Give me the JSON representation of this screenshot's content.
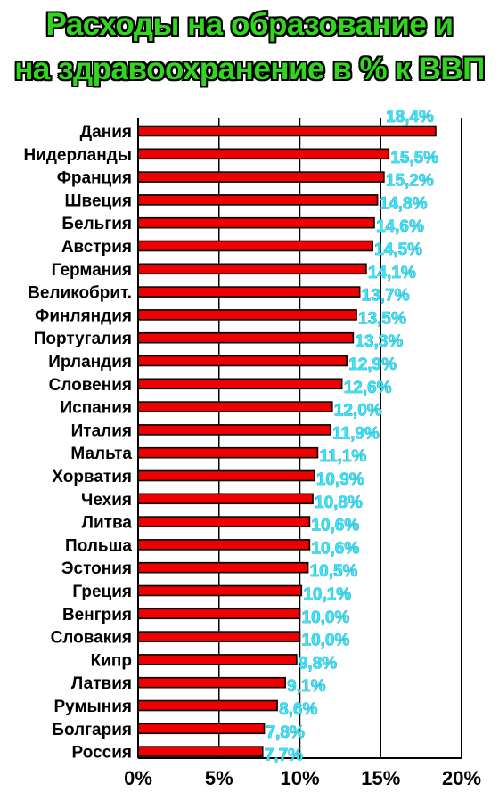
{
  "chart_data": {
    "type": "bar",
    "orientation": "horizontal",
    "title_lines": [
      "Расходы на образование и",
      "на здравоохранение в % к ВВП"
    ],
    "categories": [
      "Дания",
      "Нидерланды",
      "Франция",
      "Швеция",
      "Бельгия",
      "Австрия",
      "Германия",
      "Великобрит.",
      "Финляндия",
      "Португалия",
      "Ирландия",
      "Словения",
      "Испания",
      "Италия",
      "Мальта",
      "Хорватия",
      "Чехия",
      "Литва",
      "Польша",
      "Эстония",
      "Греция",
      "Венгрия",
      "Словакия",
      "Кипр",
      "Латвия",
      "Румыния",
      "Болгария",
      "Россия"
    ],
    "values": [
      18.4,
      15.5,
      15.2,
      14.8,
      14.6,
      14.5,
      14.1,
      13.7,
      13.5,
      13.3,
      12.9,
      12.6,
      12.0,
      11.9,
      11.1,
      10.9,
      10.8,
      10.6,
      10.6,
      10.5,
      10.1,
      10.0,
      10.0,
      9.8,
      9.1,
      8.6,
      7.8,
      7.7
    ],
    "value_labels": [
      "18,4%",
      "15,5%",
      "15,2%",
      "14,8%",
      "14,6%",
      "14,5%",
      "14,1%",
      "13,7%",
      "13,5%",
      "13,3%",
      "12,9%",
      "12,6%",
      "12,0%",
      "11,9%",
      "11,1%",
      "10,9%",
      "10,8%",
      "10,6%",
      "10,6%",
      "10,5%",
      "10,1%",
      "10,0%",
      "10,0%",
      "9,8%",
      "9,1%",
      "8,6%",
      "7,8%",
      "7,7%"
    ],
    "xticks": [
      0,
      5,
      10,
      15,
      20
    ],
    "xtick_labels": [
      "0%",
      "5%",
      "10%",
      "15%",
      "20%"
    ],
    "xlim": [
      0,
      20
    ],
    "grid": true,
    "colors": {
      "bar": "#ee0000",
      "bar_edge": "#000000",
      "value_label": "#33e6ff",
      "title": "#33d61e"
    }
  }
}
